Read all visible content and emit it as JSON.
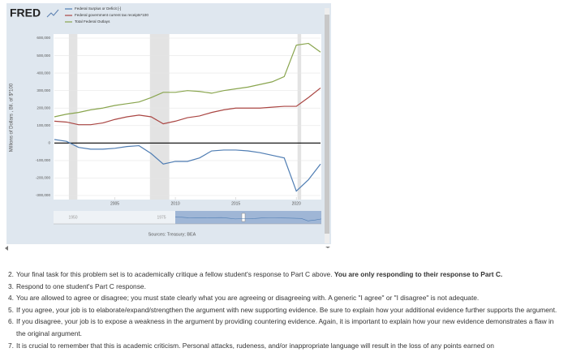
{
  "chart_data": {
    "type": "line",
    "brand": "FRED",
    "y_label": "Millions of Dollars , Bil. of $*100",
    "source": "Sources: Treasury; BEA",
    "x": [
      2000,
      2001,
      2002,
      2003,
      2004,
      2005,
      2006,
      2007,
      2008,
      2009,
      2010,
      2011,
      2012,
      2013,
      2014,
      2015,
      2016,
      2017,
      2018,
      2019,
      2020,
      2021,
      2022
    ],
    "series": [
      {
        "name": "Federal Surplus or Deficit [-]",
        "color": "#4f7db3",
        "values": [
          20000,
          10000,
          -25000,
          -35000,
          -35000,
          -30000,
          -20000,
          -15000,
          -60000,
          -120000,
          -105000,
          -105000,
          -85000,
          -45000,
          -40000,
          -40000,
          -45000,
          -55000,
          -70000,
          -85000,
          -275000,
          -210000,
          -120000
        ]
      },
      {
        "name": "Federal government current tax receipts*100",
        "color": "#aa4643",
        "values": [
          125000,
          120000,
          105000,
          105000,
          115000,
          135000,
          150000,
          160000,
          150000,
          110000,
          125000,
          145000,
          155000,
          175000,
          190000,
          200000,
          200000,
          200000,
          205000,
          210000,
          210000,
          260000,
          315000
        ]
      },
      {
        "name": "Total Federal Outlays",
        "color": "#89a54e",
        "values": [
          150000,
          165000,
          175000,
          190000,
          200000,
          215000,
          225000,
          235000,
          260000,
          290000,
          290000,
          300000,
          295000,
          285000,
          300000,
          310000,
          320000,
          335000,
          350000,
          380000,
          560000,
          570000,
          520000
        ]
      }
    ],
    "xlim": [
      2000,
      2022
    ],
    "xticks": [
      2005,
      2010,
      2015,
      2020
    ],
    "ylim": [
      -300000,
      600000
    ],
    "yticks": [
      {
        "value": -300000,
        "label": "-300,000"
      },
      {
        "value": -200000,
        "label": "-200,000"
      },
      {
        "value": -100000,
        "label": "-100,000"
      },
      0,
      {
        "value": 100000,
        "label": "100,000"
      },
      {
        "value": 200000,
        "label": "200,000"
      },
      {
        "value": 300000,
        "label": "300,000"
      },
      {
        "value": 400000,
        "label": "400,000"
      },
      {
        "value": 500000,
        "label": "500,000"
      },
      {
        "value": 600000,
        "label": "600,000"
      }
    ],
    "recessions": [
      [
        2001.2,
        2001.9
      ],
      [
        2007.9,
        2009.5
      ],
      [
        2020.1,
        2020.4
      ]
    ],
    "navigator_labels": [
      "1950",
      "1975"
    ],
    "grid": true
  },
  "instructions": [
    {
      "number": "2.",
      "text": "Your final task for this problem set is to academically critique a fellow student's response to Part C above. ",
      "bold": "You are only responding to their response to Part C."
    },
    {
      "number": "3.",
      "text": "Respond to one student's Part C response."
    },
    {
      "number": "4.",
      "text": "You are allowed to agree or disagree; you must state clearly what you are agreeing or disagreeing with. A generic \"I agree\" or \"I disagree\" is not adequate."
    },
    {
      "number": "5.",
      "text": "If you agree, your job is to elaborate/expand/strengthen the argument with new supporting evidence. Be sure to explain how your additional evidence further supports the argument."
    },
    {
      "number": "6.",
      "text": "If you disagree, your job is to expose a weakness in the argument by providing countering evidence. Again, it is important to explain how your new evidence demonstrates a flaw in the original argument."
    },
    {
      "number": "7.",
      "text": "It is crucial to remember that this is academic criticism. Personal attacks, rudeness, and/or inappropriate language will result in the loss of any points earned on"
    }
  ]
}
